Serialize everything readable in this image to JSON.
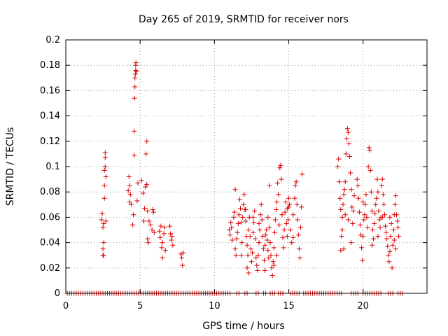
{
  "chart_data": {
    "type": "scatter",
    "title": "Day 265 of 2019, SRMTID for receiver nors",
    "xlabel": "GPS time / hours",
    "ylabel": "SRMTID / TECUs",
    "xlim": [
      0,
      24.3
    ],
    "ylim": [
      0,
      0.2
    ],
    "xticks": [
      0,
      5,
      10,
      15,
      20
    ],
    "xtick_labels": [
      "0",
      "5",
      "10",
      "15",
      "20"
    ],
    "yticks": [
      0,
      0.02,
      0.04,
      0.06,
      0.08,
      0.1,
      0.12,
      0.14,
      0.16,
      0.18,
      0.2
    ],
    "ytick_labels": [
      "0",
      "0.02",
      "0.04",
      "0.06",
      "0.08",
      "0.1",
      "0.12",
      "0.14",
      "0.16",
      "0.18",
      "0.2"
    ],
    "grid": true,
    "marker": "+",
    "color": "#dd0000",
    "series": [
      {
        "name": "SRMTID",
        "points": [
          [
            2.4,
            0.058
          ],
          [
            2.45,
            0.063
          ],
          [
            2.5,
            0.035
          ],
          [
            2.5,
            0.03
          ],
          [
            2.55,
            0.04
          ],
          [
            2.55,
            0.055
          ],
          [
            2.6,
            0.075
          ],
          [
            2.6,
            0.085
          ],
          [
            2.6,
            0.097
          ],
          [
            2.65,
            0.1
          ],
          [
            2.65,
            0.107
          ],
          [
            2.65,
            0.111
          ],
          [
            2.7,
            0.092
          ],
          [
            2.7,
            0.057
          ],
          [
            2.5,
            0.052
          ],
          [
            2.55,
            0.03
          ],
          [
            4.2,
            0.081
          ],
          [
            4.25,
            0.092
          ],
          [
            4.3,
            0.085
          ],
          [
            4.3,
            0.072
          ],
          [
            4.35,
            0.078
          ],
          [
            4.4,
            0.07
          ],
          [
            4.5,
            0.054
          ],
          [
            4.55,
            0.062
          ],
          [
            4.6,
            0.109
          ],
          [
            4.6,
            0.128
          ],
          [
            4.62,
            0.154
          ],
          [
            4.65,
            0.163
          ],
          [
            4.65,
            0.17
          ],
          [
            4.68,
            0.173
          ],
          [
            4.7,
            0.176
          ],
          [
            4.7,
            0.18
          ],
          [
            4.72,
            0.182
          ],
          [
            4.75,
            0.175
          ],
          [
            4.8,
            0.073
          ],
          [
            4.85,
            0.087
          ],
          [
            5.1,
            0.089
          ],
          [
            5.2,
            0.079
          ],
          [
            5.25,
            0.057
          ],
          [
            5.3,
            0.067
          ],
          [
            5.35,
            0.084
          ],
          [
            5.4,
            0.11
          ],
          [
            5.45,
            0.12
          ],
          [
            5.45,
            0.086
          ],
          [
            5.5,
            0.065
          ],
          [
            5.5,
            0.043
          ],
          [
            5.55,
            0.04
          ],
          [
            5.6,
            0.057
          ],
          [
            5.7,
            0.054
          ],
          [
            5.8,
            0.05
          ],
          [
            5.85,
            0.066
          ],
          [
            5.9,
            0.064
          ],
          [
            5.95,
            0.048
          ],
          [
            6.3,
            0.049
          ],
          [
            6.35,
            0.044
          ],
          [
            6.4,
            0.053
          ],
          [
            6.45,
            0.036
          ],
          [
            6.5,
            0.04
          ],
          [
            6.5,
            0.028
          ],
          [
            6.6,
            0.047
          ],
          [
            6.65,
            0.052
          ],
          [
            6.7,
            0.034
          ],
          [
            7.0,
            0.053
          ],
          [
            7.05,
            0.047
          ],
          [
            7.1,
            0.042
          ],
          [
            7.15,
            0.045
          ],
          [
            7.2,
            0.038
          ],
          [
            7.75,
            0.031
          ],
          [
            7.8,
            0.028
          ],
          [
            7.85,
            0.022
          ],
          [
            7.9,
            0.032
          ],
          [
            11.0,
            0.05
          ],
          [
            11.05,
            0.046
          ],
          [
            11.1,
            0.056
          ],
          [
            11.15,
            0.052
          ],
          [
            11.2,
            0.042
          ],
          [
            11.3,
            0.06
          ],
          [
            11.35,
            0.064
          ],
          [
            11.4,
            0.082
          ],
          [
            11.4,
            0.035
          ],
          [
            11.45,
            0.03
          ],
          [
            11.5,
            0.043
          ],
          [
            11.55,
            0.048
          ],
          [
            11.6,
            0.055
          ],
          [
            11.65,
            0.062
          ],
          [
            11.7,
            0.074
          ],
          [
            11.75,
            0.067
          ],
          [
            11.8,
            0.056
          ],
          [
            11.85,
            0.04
          ],
          [
            11.9,
            0.06
          ],
          [
            11.95,
            0.07
          ],
          [
            12.0,
            0.078
          ],
          [
            12.05,
            0.066
          ],
          [
            12.1,
            0.057
          ],
          [
            12.15,
            0.045
          ],
          [
            12.2,
            0.038
          ],
          [
            12.2,
            0.02
          ],
          [
            12.25,
            0.03
          ],
          [
            12.3,
            0.05
          ],
          [
            12.35,
            0.06
          ],
          [
            12.4,
            0.045
          ],
          [
            12.45,
            0.035
          ],
          [
            12.5,
            0.025
          ],
          [
            12.55,
            0.032
          ],
          [
            12.6,
            0.048
          ],
          [
            12.65,
            0.056
          ],
          [
            12.7,
            0.065
          ],
          [
            12.75,
            0.043
          ],
          [
            12.8,
            0.028
          ],
          [
            12.85,
            0.022
          ],
          [
            12.9,
            0.018
          ],
          [
            12.95,
            0.03
          ],
          [
            13.0,
            0.04
          ],
          [
            13.05,
            0.05
          ],
          [
            13.1,
            0.062
          ],
          [
            13.15,
            0.07
          ],
          [
            13.2,
            0.058
          ],
          [
            13.25,
            0.045
          ],
          [
            13.3,
            0.035
          ],
          [
            13.35,
            0.026
          ],
          [
            13.4,
            0.038
          ],
          [
            13.45,
            0.046
          ],
          [
            13.5,
            0.05
          ],
          [
            13.55,
            0.042
          ],
          [
            13.6,
            0.034
          ],
          [
            13.65,
            0.028
          ],
          [
            13.7,
            0.085
          ],
          [
            13.7,
            0.052
          ],
          [
            13.75,
            0.04
          ],
          [
            13.8,
            0.03
          ],
          [
            13.85,
            0.02
          ],
          [
            13.9,
            0.014
          ],
          [
            13.95,
            0.025
          ],
          [
            14.0,
            0.036
          ],
          [
            14.05,
            0.048
          ],
          [
            14.1,
            0.058
          ],
          [
            14.15,
            0.066
          ],
          [
            14.2,
            0.072
          ],
          [
            14.25,
            0.087
          ],
          [
            14.3,
            0.078
          ],
          [
            14.35,
            0.054
          ],
          [
            14.4,
            0.099
          ],
          [
            14.45,
            0.101
          ],
          [
            14.5,
            0.09
          ],
          [
            14.55,
            0.062
          ],
          [
            14.6,
            0.044
          ],
          [
            14.65,
            0.036
          ],
          [
            14.7,
            0.05
          ],
          [
            14.75,
            0.064
          ],
          [
            14.8,
            0.072
          ],
          [
            14.85,
            0.055
          ],
          [
            14.9,
            0.045
          ],
          [
            14.95,
            0.058
          ],
          [
            15.0,
            0.068
          ],
          [
            15.05,
            0.07
          ],
          [
            15.1,
            0.05
          ],
          [
            15.2,
            0.04
          ],
          [
            15.3,
            0.062
          ],
          [
            15.4,
            0.075
          ],
          [
            15.45,
            0.085
          ],
          [
            15.5,
            0.088
          ],
          [
            15.55,
            0.07
          ],
          [
            15.6,
            0.058
          ],
          [
            15.65,
            0.046
          ],
          [
            15.7,
            0.035
          ],
          [
            15.75,
            0.028
          ],
          [
            15.8,
            0.052
          ],
          [
            15.85,
            0.068
          ],
          [
            15.9,
            0.094
          ],
          [
            12.3,
            0.016
          ],
          [
            13.4,
            0.018
          ],
          [
            14.2,
            0.03
          ],
          [
            12.6,
            0.06
          ],
          [
            13.0,
            0.055
          ],
          [
            13.6,
            0.06
          ],
          [
            14.0,
            0.022
          ],
          [
            14.9,
            0.067
          ],
          [
            15.0,
            0.075
          ],
          [
            15.3,
            0.044
          ],
          [
            11.8,
            0.03
          ],
          [
            12.1,
            0.066
          ],
          [
            18.3,
            0.1
          ],
          [
            18.35,
            0.106
          ],
          [
            18.4,
            0.088
          ],
          [
            18.45,
            0.075
          ],
          [
            18.5,
            0.066
          ],
          [
            18.5,
            0.034
          ],
          [
            18.55,
            0.045
          ],
          [
            18.6,
            0.06
          ],
          [
            18.65,
            0.07
          ],
          [
            18.7,
            0.078
          ],
          [
            18.75,
            0.082
          ],
          [
            18.8,
            0.088
          ],
          [
            18.85,
            0.11
          ],
          [
            18.9,
            0.122
          ],
          [
            18.95,
            0.13
          ],
          [
            19.0,
            0.127
          ],
          [
            19.05,
            0.118
          ],
          [
            19.1,
            0.108
          ],
          [
            19.15,
            0.095
          ],
          [
            19.2,
            0.082
          ],
          [
            19.25,
            0.068
          ],
          [
            19.3,
            0.055
          ],
          [
            19.35,
            0.065
          ],
          [
            19.4,
            0.077
          ],
          [
            18.6,
            0.05
          ],
          [
            18.7,
            0.035
          ],
          [
            18.8,
            0.062
          ],
          [
            19.0,
            0.058
          ],
          [
            19.2,
            0.04
          ],
          [
            19.6,
            0.09
          ],
          [
            19.65,
            0.085
          ],
          [
            19.7,
            0.075
          ],
          [
            19.75,
            0.064
          ],
          [
            19.8,
            0.054
          ],
          [
            19.85,
            0.046
          ],
          [
            19.9,
            0.036
          ],
          [
            19.95,
            0.026
          ],
          [
            20.0,
            0.045
          ],
          [
            20.05,
            0.058
          ],
          [
            20.1,
            0.062
          ],
          [
            20.15,
            0.07
          ],
          [
            20.2,
            0.078
          ],
          [
            20.25,
            0.06
          ],
          [
            20.3,
            0.052
          ],
          [
            20.35,
            0.1
          ],
          [
            20.4,
            0.115
          ],
          [
            20.45,
            0.113
          ],
          [
            20.5,
            0.097
          ],
          [
            20.55,
            0.08
          ],
          [
            20.6,
            0.065
          ],
          [
            20.65,
            0.05
          ],
          [
            20.7,
            0.043
          ],
          [
            20.75,
            0.055
          ],
          [
            20.8,
            0.063
          ],
          [
            20.85,
            0.07
          ],
          [
            20.9,
            0.075
          ],
          [
            20.95,
            0.09
          ],
          [
            21.0,
            0.08
          ],
          [
            21.05,
            0.065
          ],
          [
            21.1,
            0.058
          ],
          [
            21.15,
            0.052
          ],
          [
            21.2,
            0.06
          ],
          [
            21.25,
            0.085
          ],
          [
            21.3,
            0.09
          ],
          [
            21.35,
            0.078
          ],
          [
            21.4,
            0.07
          ],
          [
            21.45,
            0.062
          ],
          [
            21.5,
            0.053
          ],
          [
            21.55,
            0.048
          ],
          [
            21.6,
            0.043
          ],
          [
            21.65,
            0.037
          ],
          [
            21.7,
            0.03
          ],
          [
            21.75,
            0.025
          ],
          [
            21.8,
            0.033
          ],
          [
            21.85,
            0.045
          ],
          [
            21.9,
            0.055
          ],
          [
            21.95,
            0.02
          ],
          [
            22.0,
            0.038
          ],
          [
            22.05,
            0.05
          ],
          [
            22.1,
            0.062
          ],
          [
            22.15,
            0.07
          ],
          [
            22.2,
            0.077
          ],
          [
            22.25,
            0.062
          ],
          [
            22.3,
            0.057
          ],
          [
            22.35,
            0.052
          ],
          [
            22.4,
            0.045
          ],
          [
            20.0,
            0.072
          ],
          [
            20.6,
            0.038
          ],
          [
            21.0,
            0.045
          ],
          [
            21.3,
            0.06
          ],
          [
            21.8,
            0.06
          ],
          [
            22.1,
            0.042
          ],
          [
            22.2,
            0.035
          ]
        ]
      }
    ],
    "baseline_points_x": [
      0.1,
      0.25,
      0.4,
      0.55,
      0.7,
      0.85,
      1.0,
      1.15,
      1.3,
      1.45,
      1.6,
      1.75,
      1.9,
      2.05,
      2.2,
      2.35,
      2.5,
      2.65,
      2.8,
      2.95,
      3.1,
      3.25,
      3.4,
      3.55,
      3.7,
      3.85,
      4.0,
      4.15,
      4.3,
      4.45,
      4.6,
      4.75,
      4.9,
      5.05,
      5.2,
      5.35,
      5.5,
      5.65,
      5.8,
      5.95,
      6.1,
      6.25,
      6.4,
      6.55,
      6.7,
      6.85,
      7.0,
      7.15,
      7.3,
      7.45,
      7.6,
      7.75,
      7.9,
      8.05,
      8.2,
      8.35,
      8.5,
      8.65,
      8.8,
      8.95,
      9.1,
      9.25,
      9.4,
      9.55,
      9.7,
      9.85,
      10.0,
      10.15,
      10.3,
      10.45,
      10.6,
      10.75,
      10.9,
      11.05,
      11.5,
      11.65,
      12.05,
      12.2,
      12.8,
      12.95,
      13.3,
      13.45,
      13.75,
      13.9,
      14.05,
      14.3,
      14.45,
      14.6,
      15.1,
      15.25,
      15.4,
      15.55,
      15.7,
      16.0,
      16.15,
      16.3,
      16.45,
      16.6,
      16.75,
      16.9,
      17.05,
      17.2,
      17.35,
      17.5,
      17.65,
      17.8,
      17.95,
      18.1,
      18.25,
      18.4,
      18.55,
      19.2,
      19.35,
      19.5,
      19.65,
      20.0,
      20.15,
      20.3,
      20.45,
      20.6,
      20.75,
      20.9,
      21.05,
      21.2,
      21.7,
      21.85,
      22.0,
      22.35,
      22.5,
      22.65
    ]
  }
}
